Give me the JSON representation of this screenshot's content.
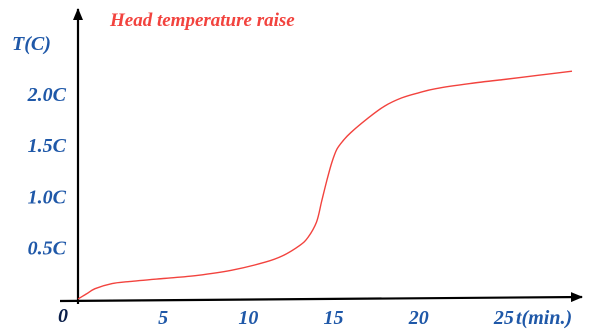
{
  "chart_data": {
    "type": "line",
    "title": "Head temperature raise",
    "ylabel": "T(C)",
    "xlabel": "t(min.)",
    "origin_label": "0",
    "x_ticks": [
      {
        "value": 5,
        "label": "5"
      },
      {
        "value": 10,
        "label": "10"
      },
      {
        "value": 15,
        "label": "15"
      },
      {
        "value": 20,
        "label": "20"
      },
      {
        "value": 25,
        "label": "25"
      }
    ],
    "y_ticks": [
      {
        "value": 0.5,
        "label": "0.5C"
      },
      {
        "value": 1.0,
        "label": "1.0C"
      },
      {
        "value": 1.5,
        "label": "1.5C"
      },
      {
        "value": 2.0,
        "label": "2.0C"
      }
    ],
    "xlim": [
      0,
      29
    ],
    "ylim": [
      0,
      2.7
    ],
    "grid": false,
    "colors": {
      "curve": "#f2433e",
      "title": "#f2433e",
      "labels": "#1f58a8",
      "axes": "#000000"
    },
    "series": [
      {
        "x": [
          0,
          0.5,
          1,
          2,
          3,
          5,
          7,
          9,
          11,
          12,
          13,
          13.5,
          14,
          14.3,
          14.6,
          14.9,
          15.2,
          15.6,
          16,
          17,
          18,
          19,
          20,
          21,
          23,
          25,
          27,
          29
        ],
        "y": [
          0,
          0.05,
          0.1,
          0.15,
          0.17,
          0.2,
          0.23,
          0.28,
          0.36,
          0.42,
          0.52,
          0.6,
          0.75,
          0.95,
          1.15,
          1.33,
          1.46,
          1.55,
          1.62,
          1.76,
          1.88,
          1.96,
          2.01,
          2.05,
          2.1,
          2.14,
          2.18,
          2.22
        ]
      }
    ]
  }
}
